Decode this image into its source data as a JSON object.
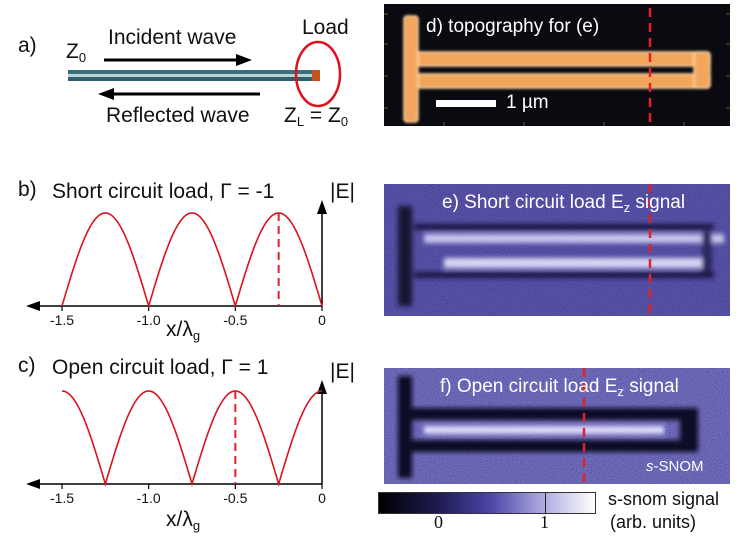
{
  "panel_a": {
    "label": "a)",
    "z0": "Z",
    "z0_sub": "0",
    "incident": "Incident wave",
    "reflected": "Reflected wave",
    "load": "Load",
    "zl": "Z",
    "zl_sub": "L",
    "zl_eq": "= Z",
    "zl_eq_sub": "0"
  },
  "panel_b": {
    "label": "b)",
    "title": "Short circuit load, Γ = -1",
    "y_label": "|E|",
    "x_label": "x/λ",
    "x_label_sub": "g",
    "ticks": [
      "-1.5",
      "-1.0",
      "-0.5",
      "0"
    ]
  },
  "panel_c": {
    "label": "c)",
    "title": "Open circuit load, Γ = 1",
    "y_label": "|E|",
    "x_label": "x/λ",
    "x_label_sub": "g",
    "ticks": [
      "-1.5",
      "-1.0",
      "-0.5",
      "0"
    ]
  },
  "panel_d": {
    "caption": "d) topography for (e)",
    "scale": "1 µm"
  },
  "panel_e": {
    "caption": "e) Short circuit load E",
    "caption_sub": "z",
    "caption_end": " signal"
  },
  "panel_f": {
    "caption": "f) Open circuit load E",
    "caption_sub": "z",
    "caption_end": " signal",
    "badge_italic": "s",
    "badge": "-SNOM"
  },
  "colorbar": {
    "title": "s-snom signal",
    "units": "(arb. units)",
    "tick0": "0",
    "tick1": "1"
  },
  "chart_data": [
    {
      "type": "line",
      "title": "Short circuit load, Γ = -1",
      "xlabel": "x/λg",
      "ylabel": "|E|",
      "xlim": [
        -1.5,
        0
      ],
      "series": [
        {
          "values_fn": "|sin(2πx)|",
          "x_range": [
            -1.5,
            0
          ]
        }
      ],
      "marker_x": -0.25
    },
    {
      "type": "line",
      "title": "Open circuit load, Γ = 1",
      "xlabel": "x/λg",
      "ylabel": "|E|",
      "xlim": [
        -1.5,
        0
      ],
      "series": [
        {
          "values_fn": "|cos(2πx)|",
          "x_range": [
            -1.5,
            0
          ]
        }
      ],
      "marker_x": -0.5
    }
  ],
  "colors": {
    "curve": "#d8141e",
    "marker": "#e2202a",
    "blue_bg": "#3b3690",
    "topo": "#f0a35a"
  }
}
